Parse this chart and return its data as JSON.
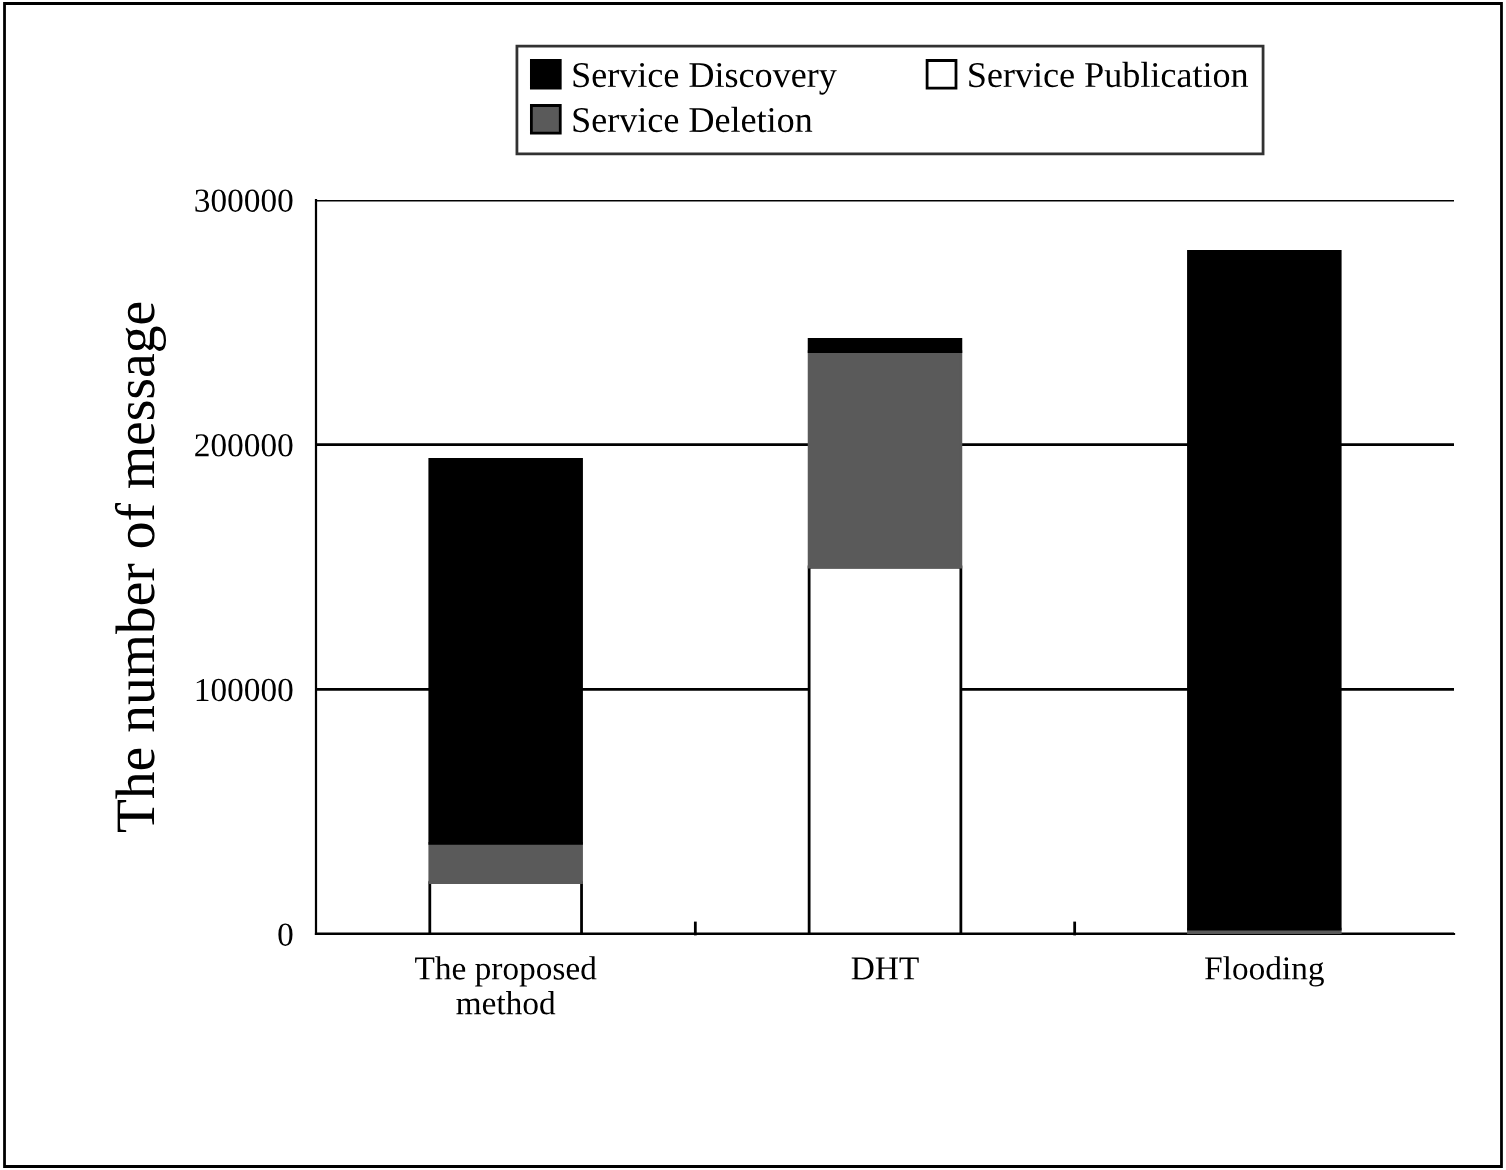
{
  "chart_data": {
    "type": "bar",
    "ylabel": "The number of message",
    "categories": [
      "The proposed\nmethod",
      "DHT",
      "Flooding"
    ],
    "stacked": true,
    "series": [
      {
        "name": "Service Publication",
        "color": "#ffffff",
        "values": [
          21000,
          150000,
          0
        ]
      },
      {
        "name": "Service Deletion",
        "color": "#5a5a5a",
        "values": [
          16000,
          88000,
          2000
        ]
      },
      {
        "name": "Service Discovery",
        "color": "#000000",
        "values": [
          157000,
          5000,
          277000
        ]
      }
    ],
    "ylim": [
      0,
      300000
    ],
    "yticks": [
      0,
      100000,
      200000,
      300000
    ],
    "grid": "y",
    "legend": "top"
  }
}
